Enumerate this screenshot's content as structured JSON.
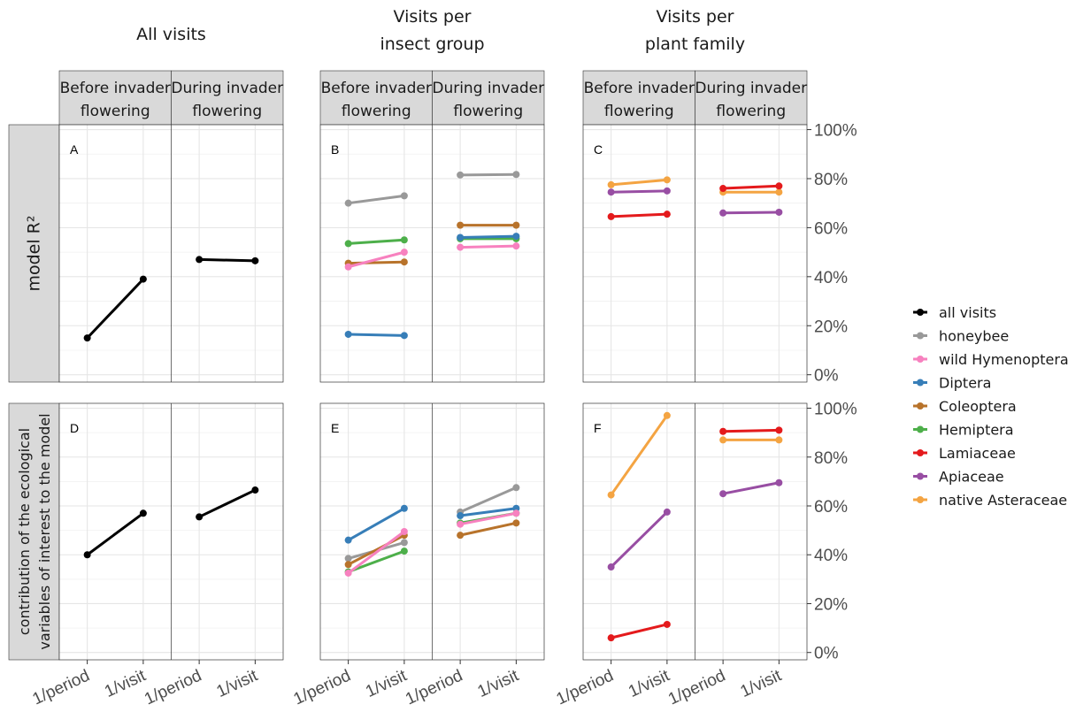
{
  "chart_data": {
    "type": "line",
    "column_titles": [
      [
        "All visits"
      ],
      [
        "Visits per",
        "insect group"
      ],
      [
        "Visits per",
        "plant family"
      ]
    ],
    "facet_strips": [
      [
        "Before invader",
        "flowering"
      ],
      [
        "During invader",
        "flowering"
      ]
    ],
    "row_labels": [
      [
        "model R²"
      ],
      [
        "contribution of the ecological",
        "variables of interest to the model"
      ]
    ],
    "x_categories": [
      "1/period",
      "1/visit"
    ],
    "y_ticks": [
      "0%",
      "20%",
      "40%",
      "60%",
      "80%",
      "100%"
    ],
    "ylim": [
      -3,
      102
    ],
    "panel_tags": [
      "A",
      "B",
      "C",
      "D",
      "E",
      "F"
    ],
    "legend": [
      {
        "name": "all visits",
        "color": "#000000"
      },
      {
        "name": "honeybee",
        "color": "#999999"
      },
      {
        "name": "wild Hymenoptera",
        "color": "#F781BF"
      },
      {
        "name": "Diptera",
        "color": "#377EB8"
      },
      {
        "name": "Coleoptera",
        "color": "#B8732B"
      },
      {
        "name": "Hemiptera",
        "color": "#4DAF4A"
      },
      {
        "name": "Lamiaceae",
        "color": "#E41A1C"
      },
      {
        "name": "Apiaceae",
        "color": "#984EA3"
      },
      {
        "name": "native Asteraceae",
        "color": "#F4A442"
      }
    ],
    "panels": [
      {
        "tag": "A",
        "series": [
          {
            "name": "all visits",
            "before": [
              15,
              39
            ],
            "during": [
              47,
              46.5
            ]
          }
        ]
      },
      {
        "tag": "B",
        "series": [
          {
            "name": "honeybee",
            "before": [
              70,
              73
            ],
            "during": [
              81.5,
              81.7
            ]
          },
          {
            "name": "Hemiptera",
            "before": [
              53.5,
              55
            ],
            "during": [
              55.5,
              55.5
            ]
          },
          {
            "name": "Coleoptera",
            "before": [
              45.5,
              46
            ],
            "during": [
              61,
              61
            ]
          },
          {
            "name": "wild Hymenoptera",
            "before": [
              44,
              50
            ],
            "during": [
              52,
              52.5
            ]
          },
          {
            "name": "Diptera",
            "before": [
              16.5,
              16
            ],
            "during": [
              56,
              56.5
            ]
          }
        ]
      },
      {
        "tag": "C",
        "series": [
          {
            "name": "native Asteraceae",
            "before": [
              77.5,
              79.5
            ],
            "during": [
              74.5,
              74.5
            ]
          },
          {
            "name": "Apiaceae",
            "before": [
              74.5,
              75
            ],
            "during": [
              66,
              66.3
            ]
          },
          {
            "name": "Lamiaceae",
            "before": [
              64.5,
              65.5
            ],
            "during": [
              76,
              77
            ]
          }
        ]
      },
      {
        "tag": "D",
        "series": [
          {
            "name": "all visits",
            "before": [
              40,
              57
            ],
            "during": [
              55.5,
              66.5
            ]
          }
        ]
      },
      {
        "tag": "E",
        "series": [
          {
            "name": "honeybee",
            "before": [
              38.5,
              45
            ],
            "during": [
              57.5,
              67.5
            ]
          },
          {
            "name": "Diptera",
            "before": [
              46,
              59
            ],
            "during": [
              56,
              59
            ]
          },
          {
            "name": "Coleoptera",
            "before": [
              36,
              48
            ],
            "during": [
              48,
              53
            ]
          },
          {
            "name": "Hemiptera",
            "before": [
              33,
              41.5
            ],
            "during": [
              53,
              57
            ]
          },
          {
            "name": "wild Hymenoptera",
            "before": [
              32.5,
              49.5
            ],
            "during": [
              52.5,
              57
            ]
          }
        ]
      },
      {
        "tag": "F",
        "series": [
          {
            "name": "native Asteraceae",
            "before": [
              64.5,
              97
            ],
            "during": [
              87,
              87
            ]
          },
          {
            "name": "Lamiaceae",
            "before": [
              6,
              11.5
            ],
            "during": [
              90.5,
              91
            ]
          },
          {
            "name": "Apiaceae",
            "before": [
              35,
              57.5
            ],
            "during": [
              65,
              69.5
            ]
          }
        ]
      }
    ]
  }
}
